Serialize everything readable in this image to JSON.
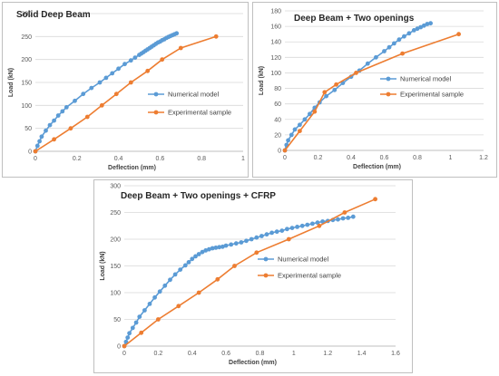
{
  "colors": {
    "numerical": "#5b9bd5",
    "experimental": "#ed7d31",
    "grid": "#d9d9d9",
    "axis": "#bfbfbf"
  },
  "chart_data": [
    {
      "type": "line",
      "title": "Solid Deep Beam",
      "xlabel": "Deflection (mm)",
      "ylabel": "Load (kN)",
      "xlim": [
        0,
        1
      ],
      "ylim": [
        0,
        300
      ],
      "xticks": [
        "0",
        "0.2",
        "0.4",
        "0.6",
        "0.8",
        "1"
      ],
      "yticks": [
        "0",
        "50",
        "100",
        "150",
        "200",
        "250",
        "300"
      ],
      "legend": "right",
      "series": [
        {
          "name": "Numerical model",
          "color": "#5b9bd5",
          "x": [
            0,
            0.01,
            0.02,
            0.03,
            0.05,
            0.07,
            0.09,
            0.11,
            0.13,
            0.15,
            0.19,
            0.23,
            0.27,
            0.31,
            0.34,
            0.37,
            0.4,
            0.43,
            0.46,
            0.48,
            0.5,
            0.51,
            0.52,
            0.53,
            0.54,
            0.55,
            0.56,
            0.57,
            0.58,
            0.59,
            0.6,
            0.61,
            0.62,
            0.63,
            0.64,
            0.65,
            0.66,
            0.67,
            0.68
          ],
          "y": [
            0,
            12,
            22,
            32,
            45,
            57,
            67,
            78,
            87,
            96,
            110,
            125,
            138,
            150,
            160,
            170,
            180,
            190,
            198,
            204,
            210,
            213,
            216,
            219,
            222,
            225,
            228,
            231,
            234,
            237,
            239,
            242,
            244,
            247,
            249,
            251,
            253,
            255,
            257
          ]
        },
        {
          "name": "Experimental sample",
          "color": "#ed7d31",
          "x": [
            0,
            0.09,
            0.17,
            0.25,
            0.32,
            0.39,
            0.46,
            0.54,
            0.61,
            0.7,
            0.87
          ],
          "y": [
            0,
            26,
            50,
            75,
            100,
            125,
            150,
            175,
            200,
            225,
            250
          ]
        }
      ]
    },
    {
      "type": "line",
      "title": "Deep Beam + Two openings",
      "xlabel": "Deflection (mm)",
      "ylabel": "Load (kN)",
      "xlim": [
        0,
        1.2
      ],
      "ylim": [
        0,
        180
      ],
      "xticks": [
        "0",
        "0.2",
        "0.4",
        "0.6",
        "0.8",
        "1",
        "1.2"
      ],
      "yticks": [
        "0",
        "20",
        "40",
        "60",
        "80",
        "100",
        "120",
        "140",
        "160",
        "180"
      ],
      "legend": "right",
      "series": [
        {
          "name": "Numerical model",
          "color": "#5b9bd5",
          "x": [
            0,
            0.01,
            0.02,
            0.04,
            0.06,
            0.09,
            0.12,
            0.15,
            0.18,
            0.21,
            0.25,
            0.3,
            0.35,
            0.4,
            0.45,
            0.5,
            0.55,
            0.6,
            0.63,
            0.66,
            0.69,
            0.72,
            0.75,
            0.78,
            0.8,
            0.82,
            0.84,
            0.86,
            0.88
          ],
          "y": [
            0,
            7,
            13,
            20,
            27,
            33,
            40,
            47,
            55,
            62,
            70,
            78,
            87,
            95,
            103,
            112,
            120,
            128,
            133,
            138,
            143,
            147,
            151,
            155,
            157,
            159,
            161,
            163,
            164
          ]
        },
        {
          "name": "Experimental sample",
          "color": "#ed7d31",
          "x": [
            0,
            0.09,
            0.18,
            0.24,
            0.31,
            0.43,
            0.71,
            1.05
          ],
          "y": [
            0,
            25,
            50,
            75,
            85,
            100,
            125,
            150
          ]
        }
      ]
    },
    {
      "type": "line",
      "title": "Deep Beam + Two openings + CFRP",
      "xlabel": "Deflection (mm)",
      "ylabel": "Load (kN)",
      "xlim": [
        0,
        1.6
      ],
      "ylim": [
        0,
        300
      ],
      "xticks": [
        "0",
        "0.2",
        "0.4",
        "0.6",
        "0.8",
        "1",
        "1.2",
        "1.4",
        "1.6"
      ],
      "yticks": [
        "0",
        "50",
        "100",
        "150",
        "200",
        "250",
        "300"
      ],
      "legend": "right",
      "series": [
        {
          "name": "Numerical model",
          "color": "#5b9bd5",
          "x": [
            0,
            0.01,
            0.02,
            0.03,
            0.05,
            0.07,
            0.09,
            0.12,
            0.15,
            0.18,
            0.21,
            0.24,
            0.27,
            0.3,
            0.33,
            0.36,
            0.38,
            0.4,
            0.42,
            0.44,
            0.46,
            0.48,
            0.5,
            0.52,
            0.54,
            0.56,
            0.58,
            0.6,
            0.63,
            0.66,
            0.69,
            0.72,
            0.75,
            0.78,
            0.81,
            0.84,
            0.87,
            0.9,
            0.93,
            0.96,
            0.99,
            1.02,
            1.05,
            1.08,
            1.11,
            1.14,
            1.17,
            1.2,
            1.23,
            1.26,
            1.29,
            1.32,
            1.35
          ],
          "y": [
            0,
            8,
            16,
            24,
            34,
            44,
            55,
            67,
            79,
            91,
            102,
            113,
            124,
            134,
            143,
            151,
            157,
            163,
            168,
            172,
            176,
            179,
            181,
            183,
            184,
            185,
            186,
            188,
            190,
            192,
            194,
            197,
            200,
            203,
            206,
            209,
            212,
            214,
            216,
            219,
            221,
            223,
            225,
            227,
            229,
            231,
            233,
            234,
            236,
            237,
            239,
            240,
            242
          ]
        },
        {
          "name": "Experimental sample",
          "color": "#ed7d31",
          "x": [
            0,
            0.1,
            0.2,
            0.32,
            0.44,
            0.55,
            0.65,
            0.78,
            0.97,
            1.15,
            1.3,
            1.48
          ],
          "y": [
            0,
            25,
            50,
            75,
            100,
            125,
            150,
            175,
            200,
            225,
            250,
            275
          ]
        }
      ]
    }
  ]
}
